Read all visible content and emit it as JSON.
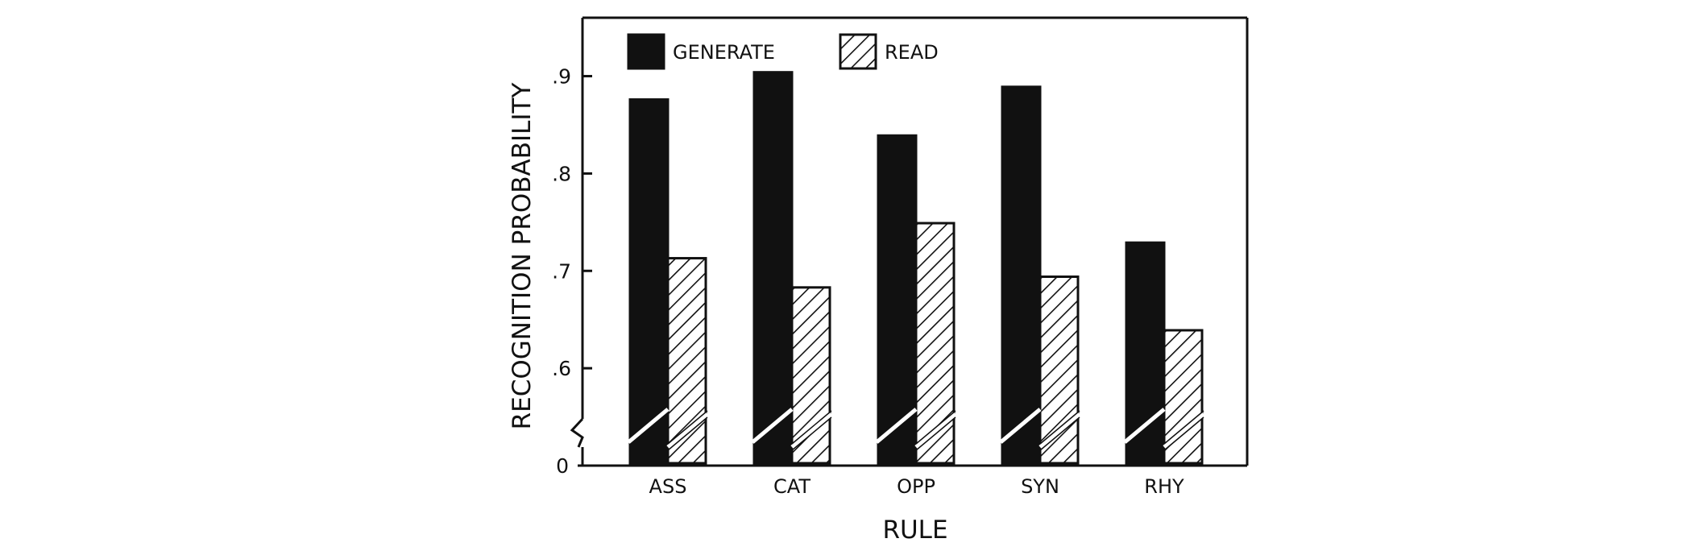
{
  "chart_data": {
    "type": "bar",
    "xlabel": "RULE",
    "ylabel": "RECOGNITION PROBABILITY",
    "categories": [
      "ASS",
      "CAT",
      "OPP",
      "SYN",
      "RHY"
    ],
    "series": [
      {
        "name": "GENERATE",
        "values": [
          0.876,
          0.904,
          0.839,
          0.889,
          0.729
        ],
        "fill": "solid"
      },
      {
        "name": "READ",
        "values": [
          0.713,
          0.683,
          0.749,
          0.694,
          0.639
        ],
        "fill": "hatched"
      }
    ],
    "yticks": [
      {
        "value": 0.9,
        "label": ".9"
      },
      {
        "value": 0.8,
        "label": ".8"
      },
      {
        "value": 0.7,
        "label": ".7"
      },
      {
        "value": 0.6,
        "label": ".6"
      }
    ],
    "ylim": [
      0.5,
      0.96
    ],
    "axis_break": true,
    "zero_label": "0",
    "legend_position": "top-left",
    "grid": false,
    "colors": {
      "bar": "#111111",
      "axis": "#111111",
      "background": "#ffffff"
    }
  }
}
